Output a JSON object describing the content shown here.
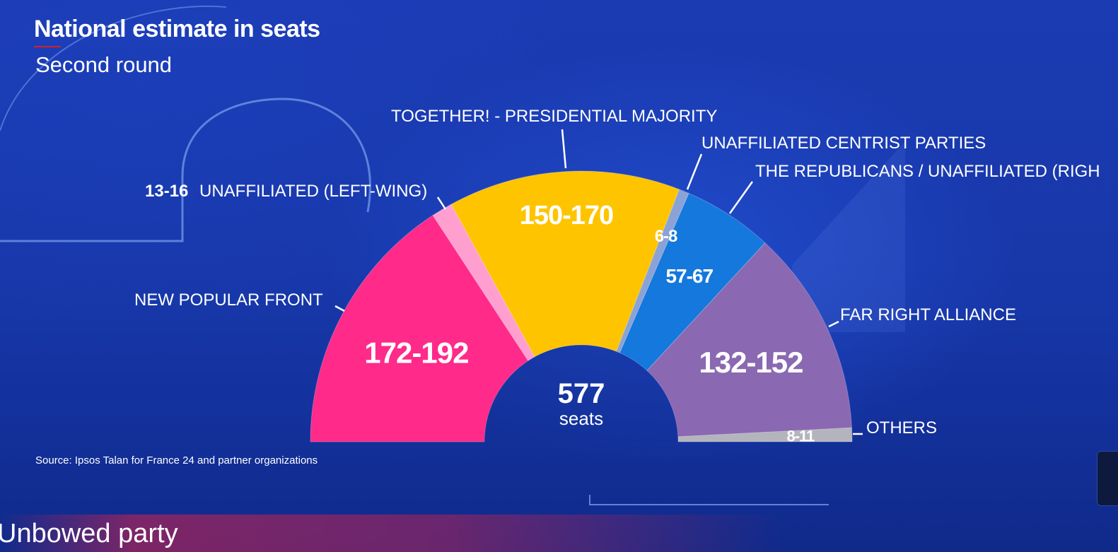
{
  "header": {
    "title": "National estimate in seats",
    "subtitle": "Second round"
  },
  "source": "Source: Ipsos Talan for France 24 and partner organizations",
  "ticker": "Unbowed party",
  "chart_data": {
    "type": "pie",
    "variant": "hemicycle",
    "total_seats": 577,
    "center_label": {
      "value": "577",
      "unit": "seats"
    },
    "series": [
      {
        "name": "NEW POPULAR FRONT",
        "range_label": "172-192",
        "low": 172,
        "high": 192,
        "seats": 182,
        "color": "#ff2a8a"
      },
      {
        "name": "UNAFFILIATED (LEFT-WING)",
        "range_label": "13-16",
        "low": 13,
        "high": 16,
        "seats": 14.5,
        "color": "#ff9fcf"
      },
      {
        "name": "TOGETHER! - PRESIDENTIAL MAJORITY",
        "range_label": "150-170",
        "low": 150,
        "high": 170,
        "seats": 160,
        "color": "#ffc400"
      },
      {
        "name": "UNAFFILIATED CENTRIST PARTIES",
        "range_label": "6-8",
        "low": 6,
        "high": 8,
        "seats": 7,
        "color": "#8aa2d6"
      },
      {
        "name": "THE REPUBLICANS / UNAFFILIATED (RIGH",
        "range_label": "57-67",
        "low": 57,
        "high": 67,
        "seats": 62,
        "color": "#1478dc"
      },
      {
        "name": "FAR RIGHT ALLIANCE",
        "range_label": "132-152",
        "low": 132,
        "high": 152,
        "seats": 142,
        "color": "#8a68b2"
      },
      {
        "name": "OTHERS",
        "range_label": "8-11",
        "low": 8,
        "high": 11,
        "seats": 9.5,
        "color": "#b4b4bc"
      }
    ]
  }
}
